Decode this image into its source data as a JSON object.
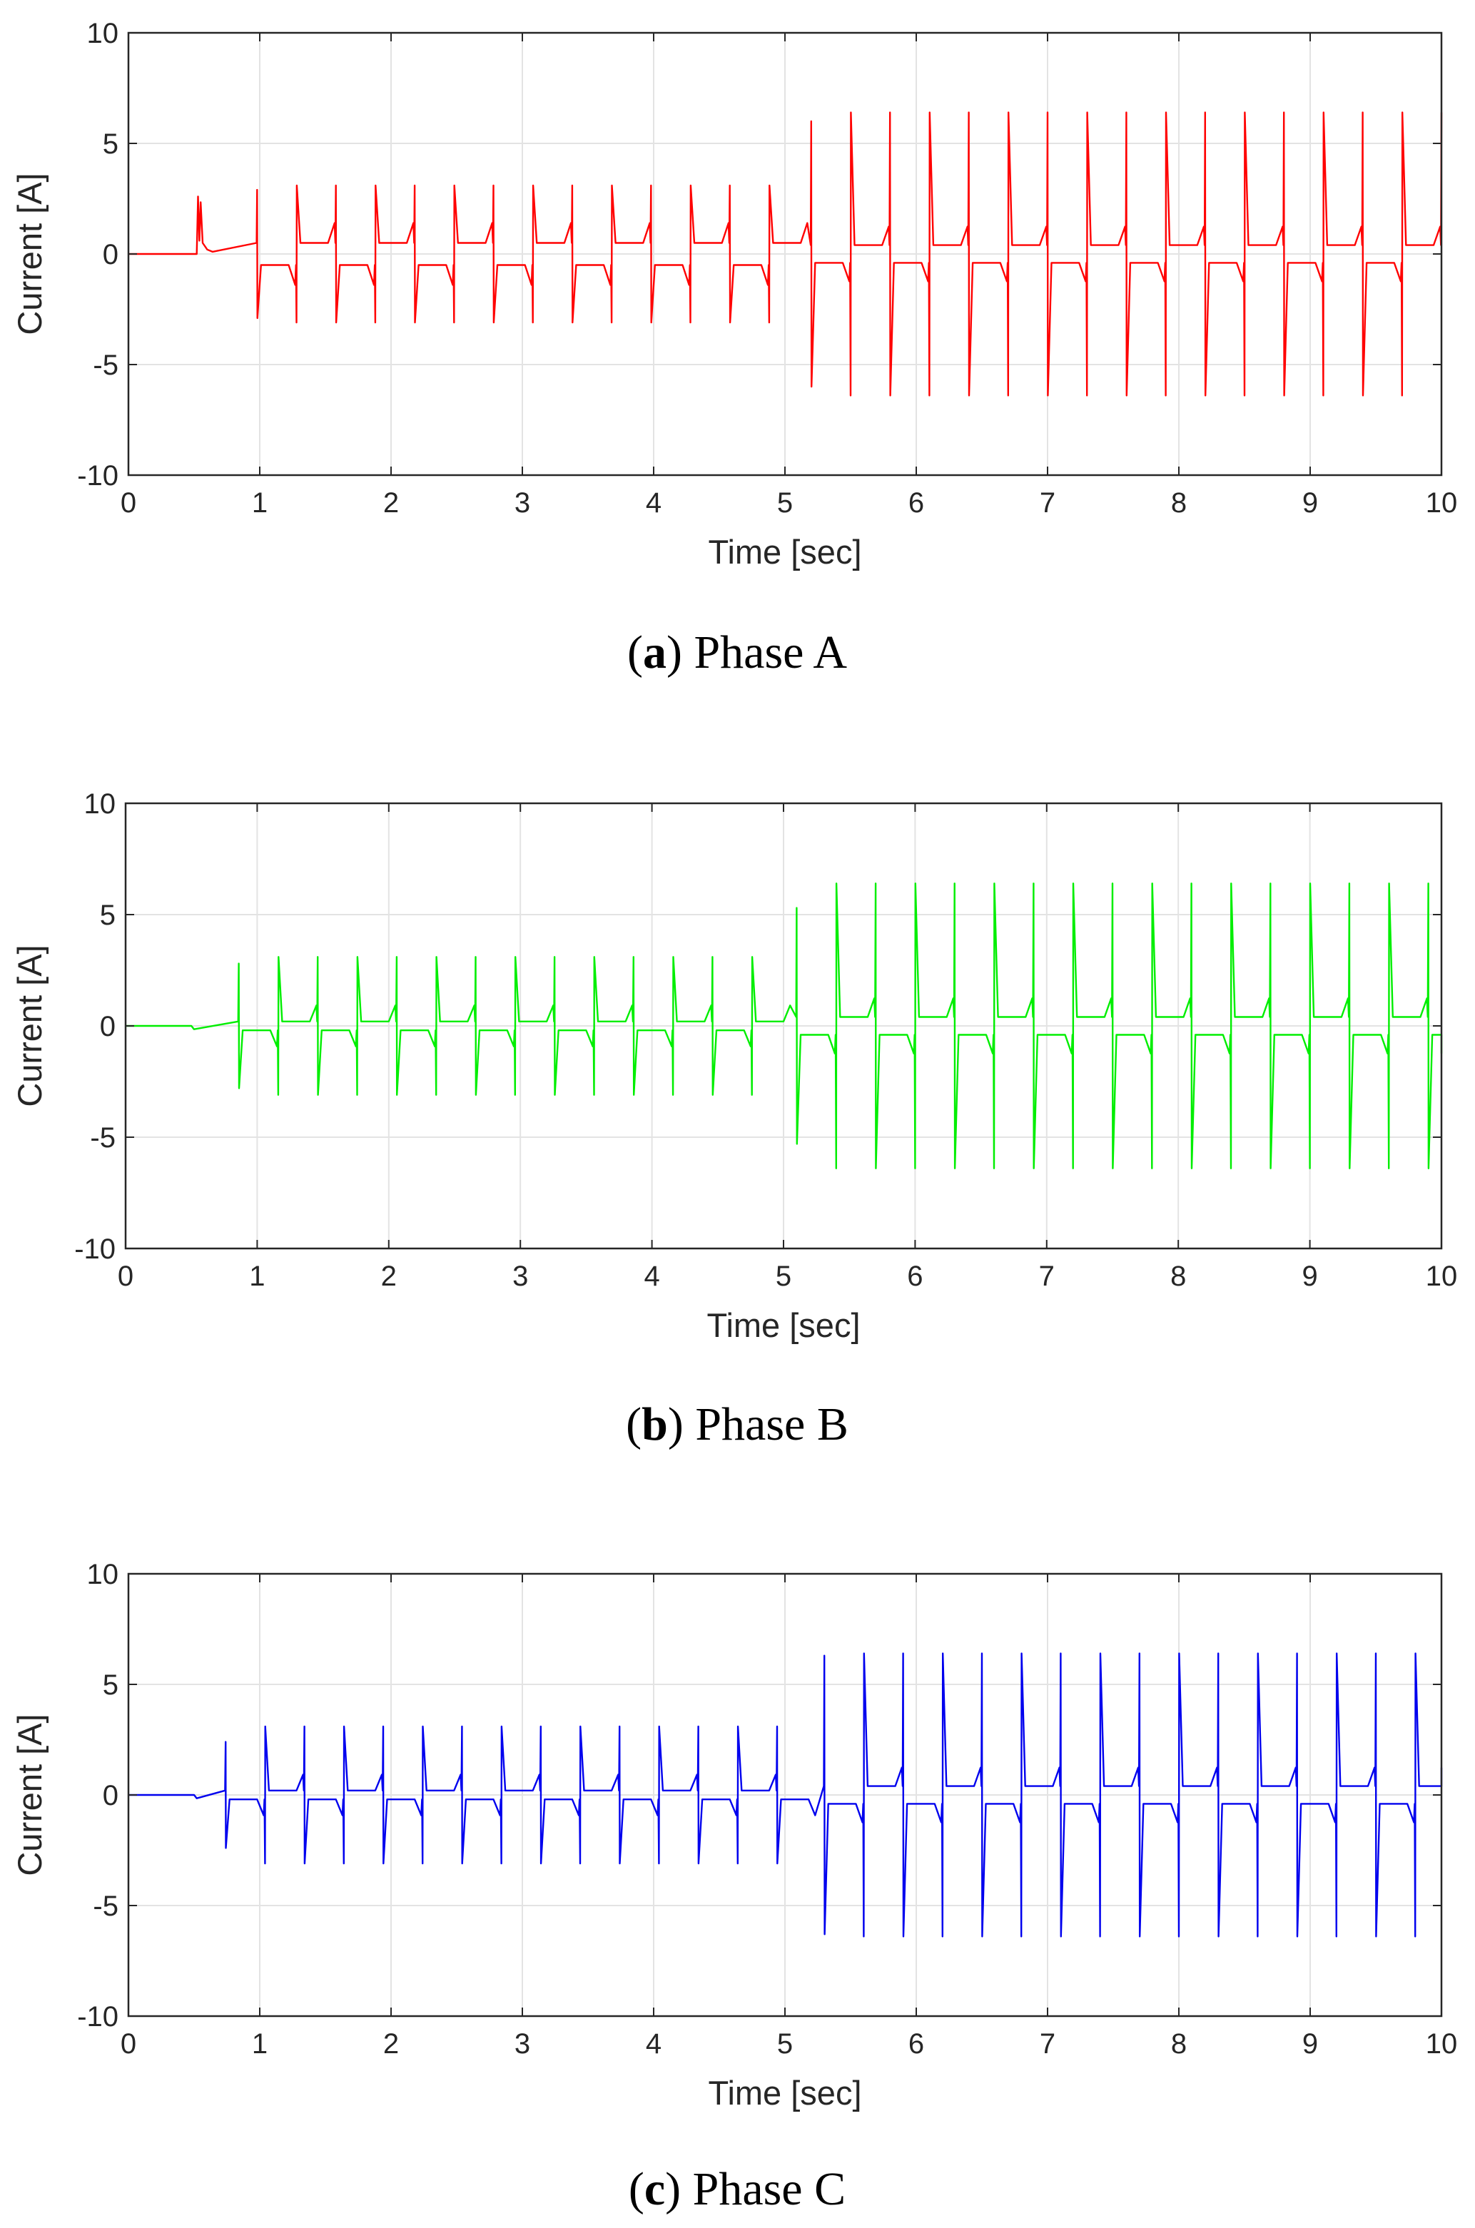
{
  "panels": [
    {
      "caption_letter": "a",
      "caption_text": ") Phase A",
      "caption_open": "(",
      "chart_data": {
        "type": "line",
        "title": "",
        "xlabel": "Time [sec]",
        "ylabel": "Current [A]",
        "xlim": [
          0,
          10
        ],
        "ylim": [
          -10,
          10
        ],
        "xticks": [
          "0",
          "1",
          "2",
          "3",
          "4",
          "5",
          "6",
          "7",
          "8",
          "9",
          "10"
        ],
        "yticks": [
          "-10",
          "-5",
          "0",
          "5",
          "10"
        ],
        "grid": true,
        "series": [
          {
            "name": "Phase A",
            "color": "#ff0000",
            "start_disturbance": {
              "t": 0.52,
              "peak": 2.6
            },
            "pulses_before_step": {
              "first": 0.98,
              "period": 0.3,
              "count": 14,
              "amplitude": 3.1,
              "offset": 0.5,
              "first_amplitude": 2.9
            },
            "pulses_after_step": {
              "first": 5.2,
              "period": 0.3,
              "count": 17,
              "amplitude": 6.4,
              "offset": 0.4,
              "first_amplitude": 6.0
            }
          }
        ]
      }
    },
    {
      "caption_letter": "b",
      "caption_text": ") Phase B",
      "caption_open": "(",
      "chart_data": {
        "type": "line",
        "title": "",
        "xlabel": "Time [sec]",
        "ylabel": "Current [A]",
        "xlim": [
          0,
          10
        ],
        "ylim": [
          -10,
          10
        ],
        "xticks": [
          "0",
          "1",
          "2",
          "3",
          "4",
          "5",
          "6",
          "7",
          "8",
          "9",
          "10"
        ],
        "yticks": [
          "-10",
          "-5",
          "0",
          "5",
          "10"
        ],
        "grid": true,
        "series": [
          {
            "name": "Phase B",
            "color": "#00ee00",
            "start_disturbance": {
              "t": 0.5,
              "peak": 0
            },
            "pulses_before_step": {
              "first": 0.86,
              "period": 0.3,
              "count": 14,
              "amplitude": 3.1,
              "offset": 0.2,
              "first_amplitude": 2.8
            },
            "pulses_after_step": {
              "first": 5.1,
              "period": 0.3,
              "count": 17,
              "amplitude": 6.4,
              "offset": 0.4,
              "first_amplitude": 5.3
            }
          }
        ]
      }
    },
    {
      "caption_letter": "c",
      "caption_text": ") Phase C",
      "caption_open": "(",
      "chart_data": {
        "type": "line",
        "title": "",
        "xlabel": "Time [sec]",
        "ylabel": "Current [A]",
        "xlim": [
          0,
          10
        ],
        "ylim": [
          -10,
          10
        ],
        "xticks": [
          "0",
          "1",
          "2",
          "3",
          "4",
          "5",
          "6",
          "7",
          "8",
          "9",
          "10"
        ],
        "yticks": [
          "-10",
          "-5",
          "0",
          "5",
          "10"
        ],
        "grid": true,
        "series": [
          {
            "name": "Phase C",
            "color": "#0000ee",
            "start_disturbance": {
              "t": 0.5,
              "peak": 0
            },
            "pulses_before_step": {
              "first": 0.74,
              "period": 0.3,
              "count": 15,
              "amplitude": 3.1,
              "offset": 0.2,
              "first_amplitude": 2.4
            },
            "pulses_after_step": {
              "first": 5.3,
              "period": 0.3,
              "count": 16,
              "amplitude": 6.4,
              "offset": 0.4,
              "first_amplitude": 6.3
            }
          }
        ]
      }
    }
  ]
}
